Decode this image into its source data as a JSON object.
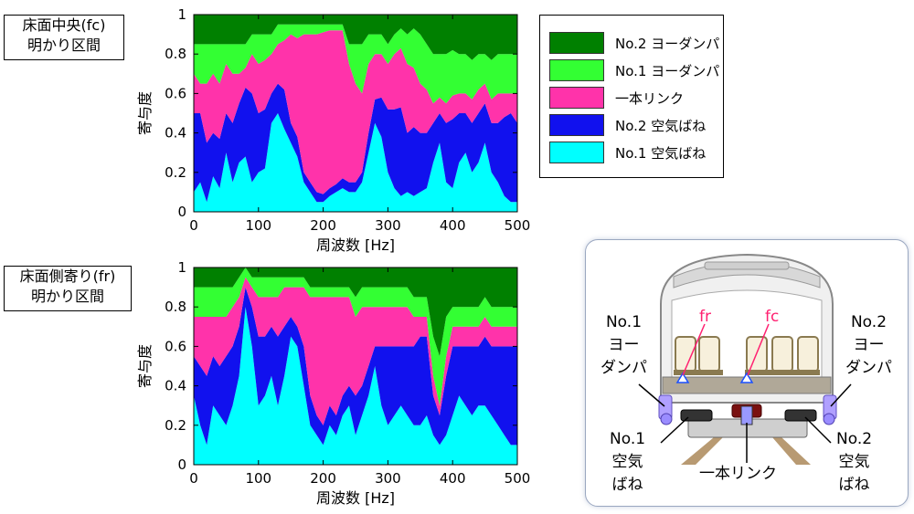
{
  "region_labels": [
    {
      "lines": [
        "床面中央(fc)",
        "明かり区間"
      ]
    },
    {
      "lines": [
        "床面側寄り(fr)",
        "明かり区間"
      ]
    }
  ],
  "legend": [
    {
      "label": "No.2 ヨーダンパ",
      "color": "#008000"
    },
    {
      "label": "No.1 ヨーダンパ",
      "color": "#33ff33"
    },
    {
      "label": "一本リンク",
      "color": "#ff33aa"
    },
    {
      "label": "No.2 空気ばね",
      "color": "#1111ee"
    },
    {
      "label": "No.1 空気ばね",
      "color": "#00ffff"
    }
  ],
  "diagram": {
    "left_damper": [
      "No.1",
      "ヨー",
      "ダンパ"
    ],
    "right_damper": [
      "No.2",
      "ヨー",
      "ダンパ"
    ],
    "left_spring": [
      "No.1",
      "空気",
      "ばね"
    ],
    "right_spring": [
      "No.2",
      "空気",
      "ばね"
    ],
    "link": "一本リンク",
    "point_fr": "fr",
    "point_fc": "fc"
  },
  "chart_data": [
    {
      "type": "area",
      "stacked": true,
      "xlabel": "周波数 [Hz]",
      "ylabel": "寄与度",
      "xlim": [
        0,
        500
      ],
      "ylim": [
        0,
        1
      ],
      "xticks": [
        0,
        100,
        200,
        300,
        400,
        500
      ],
      "yticks": [
        0,
        0.2,
        0.4,
        0.6,
        0.8,
        1
      ],
      "x": [
        0,
        10,
        20,
        30,
        40,
        50,
        60,
        70,
        80,
        90,
        100,
        110,
        120,
        130,
        140,
        150,
        160,
        170,
        180,
        190,
        200,
        210,
        220,
        230,
        240,
        250,
        260,
        270,
        280,
        290,
        300,
        310,
        320,
        330,
        340,
        350,
        360,
        370,
        380,
        390,
        400,
        410,
        420,
        430,
        440,
        450,
        460,
        470,
        480,
        490,
        500
      ],
      "series": [
        {
          "name": "No.1 空気ばね",
          "color": "#00ffff",
          "values": [
            0.1,
            0.15,
            0.05,
            0.18,
            0.12,
            0.3,
            0.15,
            0.25,
            0.28,
            0.15,
            0.2,
            0.22,
            0.45,
            0.5,
            0.42,
            0.35,
            0.28,
            0.15,
            0.1,
            0.05,
            0.05,
            0.08,
            0.1,
            0.12,
            0.1,
            0.1,
            0.15,
            0.3,
            0.45,
            0.38,
            0.2,
            0.12,
            0.08,
            0.1,
            0.08,
            0.1,
            0.12,
            0.25,
            0.35,
            0.15,
            0.12,
            0.25,
            0.3,
            0.2,
            0.25,
            0.35,
            0.2,
            0.15,
            0.08,
            0.05,
            0.05
          ]
        },
        {
          "name": "No.2 空気ばね",
          "color": "#1111ee",
          "values": [
            0.4,
            0.35,
            0.3,
            0.22,
            0.25,
            0.2,
            0.3,
            0.3,
            0.35,
            0.45,
            0.3,
            0.3,
            0.15,
            0.15,
            0.2,
            0.1,
            0.1,
            0.05,
            0.05,
            0.05,
            0.04,
            0.04,
            0.04,
            0.05,
            0.05,
            0.05,
            0.05,
            0.1,
            0.12,
            0.2,
            0.32,
            0.4,
            0.45,
            0.3,
            0.35,
            0.3,
            0.28,
            0.2,
            0.15,
            0.3,
            0.35,
            0.25,
            0.2,
            0.25,
            0.25,
            0.2,
            0.25,
            0.3,
            0.4,
            0.45,
            0.4
          ]
        },
        {
          "name": "一本リンク",
          "color": "#ff33aa",
          "values": [
            0.2,
            0.15,
            0.3,
            0.3,
            0.28,
            0.25,
            0.25,
            0.15,
            0.1,
            0.2,
            0.25,
            0.25,
            0.2,
            0.2,
            0.25,
            0.45,
            0.5,
            0.7,
            0.75,
            0.8,
            0.82,
            0.8,
            0.78,
            0.75,
            0.6,
            0.5,
            0.4,
            0.35,
            0.23,
            0.22,
            0.23,
            0.28,
            0.3,
            0.35,
            0.3,
            0.25,
            0.22,
            0.1,
            0.08,
            0.1,
            0.12,
            0.1,
            0.1,
            0.12,
            0.12,
            0.1,
            0.12,
            0.15,
            0.12,
            0.1,
            0.15
          ]
        },
        {
          "name": "No.1 ヨーダンパ",
          "color": "#33ff33",
          "values": [
            0.15,
            0.2,
            0.2,
            0.15,
            0.2,
            0.1,
            0.15,
            0.15,
            0.12,
            0.1,
            0.15,
            0.13,
            0.1,
            0.1,
            0.08,
            0.05,
            0.07,
            0.05,
            0.05,
            0.05,
            0.04,
            0.03,
            0.03,
            0.03,
            0.1,
            0.2,
            0.25,
            0.15,
            0.1,
            0.1,
            0.1,
            0.1,
            0.1,
            0.15,
            0.2,
            0.25,
            0.23,
            0.25,
            0.22,
            0.25,
            0.23,
            0.2,
            0.2,
            0.2,
            0.18,
            0.15,
            0.2,
            0.2,
            0.2,
            0.2,
            0.2
          ]
        },
        {
          "name": "No.2 ヨーダンパ",
          "color": "#008000",
          "values": [
            0.15,
            0.15,
            0.15,
            0.15,
            0.15,
            0.15,
            0.15,
            0.15,
            0.15,
            0.1,
            0.1,
            0.1,
            0.1,
            0.05,
            0.05,
            0.05,
            0.05,
            0.05,
            0.05,
            0.05,
            0.05,
            0.05,
            0.05,
            0.05,
            0.15,
            0.15,
            0.15,
            0.1,
            0.1,
            0.1,
            0.15,
            0.1,
            0.07,
            0.1,
            0.07,
            0.1,
            0.15,
            0.2,
            0.2,
            0.2,
            0.18,
            0.2,
            0.2,
            0.23,
            0.2,
            0.2,
            0.23,
            0.2,
            0.2,
            0.2,
            0.2
          ]
        }
      ]
    },
    {
      "type": "area",
      "stacked": true,
      "xlabel": "周波数 [Hz]",
      "ylabel": "寄与度",
      "xlim": [
        0,
        500
      ],
      "ylim": [
        0,
        1
      ],
      "xticks": [
        0,
        100,
        200,
        300,
        400,
        500
      ],
      "yticks": [
        0,
        0.2,
        0.4,
        0.6,
        0.8,
        1
      ],
      "x": [
        0,
        10,
        20,
        30,
        40,
        50,
        60,
        70,
        80,
        90,
        100,
        110,
        120,
        130,
        140,
        150,
        160,
        170,
        180,
        190,
        200,
        210,
        220,
        230,
        240,
        250,
        260,
        270,
        280,
        290,
        300,
        310,
        320,
        330,
        340,
        350,
        360,
        370,
        380,
        390,
        400,
        410,
        420,
        430,
        440,
        450,
        460,
        470,
        480,
        490,
        500
      ],
      "series": [
        {
          "name": "No.1 空気ばね",
          "color": "#00ffff",
          "values": [
            0.35,
            0.2,
            0.1,
            0.3,
            0.25,
            0.2,
            0.3,
            0.45,
            0.8,
            0.6,
            0.3,
            0.35,
            0.45,
            0.3,
            0.45,
            0.65,
            0.6,
            0.4,
            0.2,
            0.15,
            0.1,
            0.2,
            0.15,
            0.25,
            0.3,
            0.15,
            0.25,
            0.35,
            0.5,
            0.3,
            0.2,
            0.25,
            0.3,
            0.25,
            0.2,
            0.2,
            0.25,
            0.15,
            0.1,
            0.15,
            0.25,
            0.35,
            0.3,
            0.25,
            0.3,
            0.3,
            0.25,
            0.2,
            0.15,
            0.1,
            0.1
          ]
        },
        {
          "name": "No.2 空気ばね",
          "color": "#1111ee",
          "values": [
            0.2,
            0.3,
            0.35,
            0.25,
            0.25,
            0.35,
            0.3,
            0.25,
            0.1,
            0.2,
            0.35,
            0.3,
            0.25,
            0.35,
            0.25,
            0.1,
            0.1,
            0.2,
            0.15,
            0.1,
            0.1,
            0.1,
            0.1,
            0.1,
            0.1,
            0.2,
            0.15,
            0.15,
            0.1,
            0.3,
            0.4,
            0.35,
            0.3,
            0.35,
            0.4,
            0.45,
            0.4,
            0.2,
            0.15,
            0.3,
            0.35,
            0.25,
            0.3,
            0.35,
            0.3,
            0.35,
            0.35,
            0.4,
            0.45,
            0.5,
            0.5
          ]
        },
        {
          "name": "一本リンク",
          "color": "#ff33aa",
          "values": [
            0.2,
            0.25,
            0.3,
            0.2,
            0.25,
            0.2,
            0.2,
            0.15,
            0.05,
            0.1,
            0.2,
            0.2,
            0.15,
            0.2,
            0.2,
            0.15,
            0.2,
            0.3,
            0.5,
            0.6,
            0.65,
            0.55,
            0.6,
            0.5,
            0.45,
            0.4,
            0.4,
            0.3,
            0.2,
            0.2,
            0.2,
            0.2,
            0.2,
            0.2,
            0.15,
            0.1,
            0.1,
            0.1,
            0.05,
            0.1,
            0.1,
            0.1,
            0.1,
            0.1,
            0.1,
            0.1,
            0.1,
            0.1,
            0.1,
            0.1,
            0.1
          ]
        },
        {
          "name": "No.1 ヨーダンパ",
          "color": "#33ff33",
          "values": [
            0.15,
            0.15,
            0.15,
            0.15,
            0.15,
            0.15,
            0.1,
            0.1,
            0.05,
            0.05,
            0.1,
            0.1,
            0.1,
            0.1,
            0.05,
            0.05,
            0.05,
            0.05,
            0.05,
            0.05,
            0.05,
            0.05,
            0.05,
            0.05,
            0.05,
            0.1,
            0.1,
            0.1,
            0.1,
            0.1,
            0.1,
            0.1,
            0.1,
            0.1,
            0.1,
            0.1,
            0.1,
            0.2,
            0.25,
            0.2,
            0.1,
            0.1,
            0.1,
            0.1,
            0.1,
            0.1,
            0.1,
            0.1,
            0.1,
            0.1,
            0.1
          ]
        },
        {
          "name": "No.2 ヨーダンパ",
          "color": "#008000",
          "values": [
            0.1,
            0.1,
            0.1,
            0.1,
            0.1,
            0.1,
            0.1,
            0.05,
            0.0,
            0.05,
            0.05,
            0.05,
            0.05,
            0.05,
            0.05,
            0.05,
            0.05,
            0.05,
            0.1,
            0.1,
            0.1,
            0.1,
            0.1,
            0.1,
            0.1,
            0.15,
            0.1,
            0.1,
            0.1,
            0.1,
            0.1,
            0.1,
            0.1,
            0.1,
            0.15,
            0.15,
            0.15,
            0.35,
            0.45,
            0.25,
            0.2,
            0.2,
            0.2,
            0.2,
            0.2,
            0.15,
            0.2,
            0.2,
            0.2,
            0.2,
            0.2
          ]
        }
      ]
    }
  ]
}
